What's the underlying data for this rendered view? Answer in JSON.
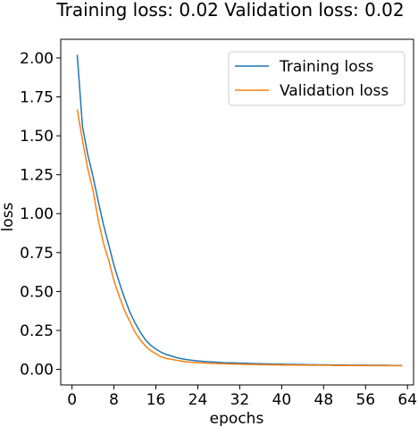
{
  "chart_data": {
    "type": "line",
    "title": "Training loss: 0.02 Validation loss: 0.02",
    "xlabel": "epochs",
    "ylabel": "loss",
    "xlim": [
      -2.15,
      65.15
    ],
    "ylim": [
      -0.1,
      2.12
    ],
    "xticks": [
      0,
      8,
      16,
      24,
      32,
      40,
      48,
      56,
      64
    ],
    "yticks": [
      0.0,
      0.25,
      0.5,
      0.75,
      1.0,
      1.25,
      1.5,
      1.75,
      2.0
    ],
    "ytick_labels": [
      "0.00",
      "0.25",
      "0.50",
      "0.75",
      "1.00",
      "1.25",
      "1.50",
      "1.75",
      "2.00"
    ],
    "grid": false,
    "legend_position": "top-right",
    "x": [
      1,
      2,
      3,
      4,
      5,
      6,
      7,
      8,
      9,
      10,
      11,
      12,
      13,
      14,
      15,
      16,
      17,
      18,
      19,
      20,
      21,
      22,
      23,
      24,
      25,
      26,
      27,
      28,
      29,
      30,
      31,
      32,
      33,
      34,
      35,
      36,
      37,
      38,
      39,
      40,
      41,
      42,
      43,
      44,
      45,
      46,
      47,
      48,
      49,
      50,
      51,
      52,
      53,
      54,
      55,
      56,
      57,
      58,
      59,
      60,
      61,
      62,
      63
    ],
    "series": [
      {
        "name": "Training loss",
        "color": "#1f77b4",
        "values": [
          2.02,
          1.56,
          1.38,
          1.24,
          1.08,
          0.93,
          0.8,
          0.67,
          0.56,
          0.46,
          0.37,
          0.3,
          0.24,
          0.19,
          0.155,
          0.13,
          0.11,
          0.095,
          0.085,
          0.075,
          0.068,
          0.062,
          0.058,
          0.054,
          0.051,
          0.049,
          0.047,
          0.045,
          0.043,
          0.042,
          0.041,
          0.04,
          0.039,
          0.038,
          0.037,
          0.036,
          0.035,
          0.034,
          0.033,
          0.033,
          0.032,
          0.032,
          0.031,
          0.031,
          0.03,
          0.03,
          0.029,
          0.029,
          0.029,
          0.028,
          0.028,
          0.028,
          0.027,
          0.027,
          0.027,
          0.027,
          0.026,
          0.026,
          0.026,
          0.026,
          0.025,
          0.025,
          0.025
        ]
      },
      {
        "name": "Validation loss",
        "color": "#ff7f0e",
        "values": [
          1.67,
          1.47,
          1.29,
          1.15,
          0.96,
          0.81,
          0.7,
          0.57,
          0.47,
          0.38,
          0.31,
          0.24,
          0.19,
          0.15,
          0.12,
          0.1,
          0.08,
          0.07,
          0.065,
          0.058,
          0.052,
          0.048,
          0.045,
          0.043,
          0.041,
          0.039,
          0.038,
          0.037,
          0.036,
          0.035,
          0.034,
          0.033,
          0.032,
          0.031,
          0.031,
          0.03,
          0.03,
          0.029,
          0.029,
          0.028,
          0.028,
          0.028,
          0.027,
          0.027,
          0.027,
          0.026,
          0.026,
          0.026,
          0.026,
          0.025,
          0.025,
          0.025,
          0.025,
          0.025,
          0.024,
          0.024,
          0.024,
          0.024,
          0.024,
          0.024,
          0.023,
          0.023,
          0.023
        ]
      }
    ]
  }
}
